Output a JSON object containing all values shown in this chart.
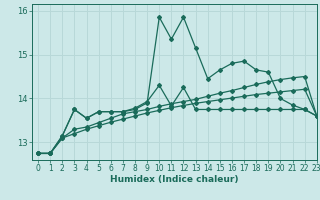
{
  "xlabel": "Humidex (Indice chaleur)",
  "xlim": [
    -0.5,
    23
  ],
  "ylim": [
    12.6,
    16.15
  ],
  "yticks": [
    13,
    14,
    15,
    16
  ],
  "xticks": [
    0,
    1,
    2,
    3,
    4,
    5,
    6,
    7,
    8,
    9,
    10,
    11,
    12,
    13,
    14,
    15,
    16,
    17,
    18,
    19,
    20,
    21,
    22,
    23
  ],
  "bg_color": "#cce8e8",
  "grid_color": "#b8d8d8",
  "line_color": "#1a6b5a",
  "line1_y": [
    12.75,
    12.75,
    13.15,
    13.75,
    13.55,
    13.7,
    13.7,
    13.7,
    13.75,
    13.9,
    15.85,
    15.35,
    15.85,
    15.15,
    14.45,
    14.65,
    14.8,
    14.85,
    14.65,
    14.6,
    14.0,
    13.85,
    13.75,
    13.6
  ],
  "line2_y": [
    12.75,
    12.75,
    13.15,
    13.75,
    13.55,
    13.7,
    13.7,
    13.7,
    13.78,
    13.93,
    14.3,
    13.83,
    14.25,
    13.75,
    13.75,
    13.75,
    13.75,
    13.75,
    13.75,
    13.75,
    13.75,
    13.75,
    13.75,
    13.6
  ],
  "line3_y": [
    12.75,
    12.75,
    13.1,
    13.3,
    13.35,
    13.45,
    13.55,
    13.65,
    13.7,
    13.75,
    13.82,
    13.88,
    13.93,
    13.98,
    14.05,
    14.12,
    14.18,
    14.25,
    14.32,
    14.38,
    14.43,
    14.47,
    14.5,
    13.6
  ],
  "line4_y": [
    12.75,
    12.75,
    13.1,
    13.2,
    13.3,
    13.38,
    13.46,
    13.53,
    13.6,
    13.67,
    13.73,
    13.79,
    13.84,
    13.89,
    13.93,
    13.97,
    14.01,
    14.05,
    14.09,
    14.12,
    14.15,
    14.18,
    14.21,
    13.6
  ]
}
